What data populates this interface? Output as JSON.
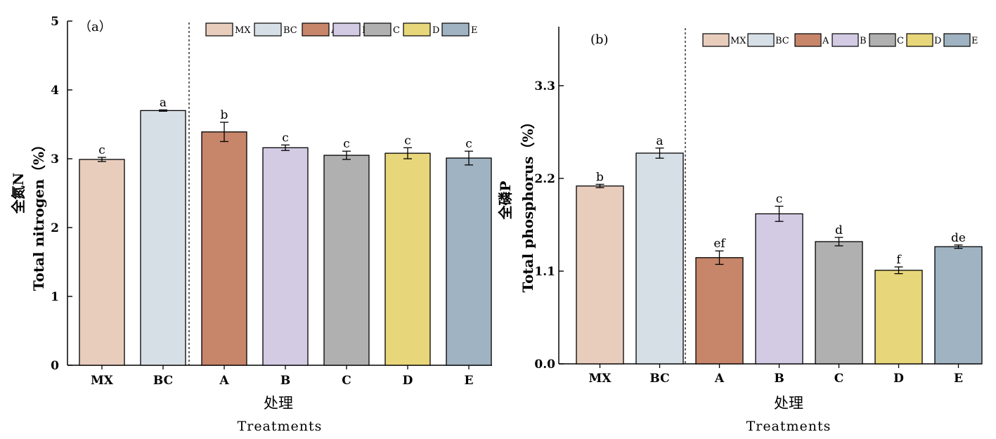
{
  "chart_data": [
    {
      "type": "bar",
      "panel_tag": "（a）",
      "categories": [
        "MX",
        "BC",
        "A",
        "B",
        "C",
        "D",
        "E"
      ],
      "values": [
        2.99,
        3.7,
        3.39,
        3.16,
        3.05,
        3.08,
        3.01
      ],
      "errors": [
        0.03,
        0.01,
        0.14,
        0.04,
        0.06,
        0.08,
        0.1
      ],
      "letters": [
        "c",
        "a",
        "b",
        "c",
        "c",
        "c",
        "c"
      ],
      "colors": [
        "#e8cdbd",
        "#d7dfe6",
        "#c7856a",
        "#d3cae4",
        "#b0b0b0",
        "#e8d67a",
        "#9fb3c2"
      ],
      "ylim": [
        0,
        5
      ],
      "yticks": [
        "0",
        "1",
        "2",
        "3",
        "4",
        "5"
      ],
      "ylabel_cn": "全氮N",
      "ylabel_en": "Total nitrogen（%）",
      "xlabel_cn": "处理",
      "xlabel_en": "Treatments",
      "legend": [
        "MX",
        "BC",
        "A",
        "B",
        "C",
        "D",
        "E"
      ],
      "divider_after_index": 1
    },
    {
      "type": "bar",
      "panel_tag": "(b)",
      "categories": [
        "MX",
        "BC",
        "A",
        "B",
        "C",
        "D",
        "E"
      ],
      "values": [
        2.11,
        2.5,
        1.26,
        1.78,
        1.45,
        1.11,
        1.39
      ],
      "errors": [
        0.02,
        0.06,
        0.08,
        0.09,
        0.05,
        0.04,
        0.02
      ],
      "letters": [
        "b",
        "a",
        "ef",
        "c",
        "d",
        "f",
        "de"
      ],
      "colors": [
        "#e8cdbd",
        "#d7dfe6",
        "#c7856a",
        "#d3cae4",
        "#b0b0b0",
        "#e8d67a",
        "#9fb3c2"
      ],
      "ylim": [
        0,
        4
      ],
      "yticks": [
        "0.0",
        "1.1",
        "2.2",
        "3.3"
      ],
      "ylabel_cn": "全磷P",
      "ylabel_en": "Total phosphorus（%）",
      "xlabel_cn": "处理",
      "xlabel_en": "Treatments",
      "legend": [
        "MX",
        "BC",
        "A",
        "B",
        "C",
        "D",
        "E"
      ],
      "divider_after_index": 1
    }
  ]
}
